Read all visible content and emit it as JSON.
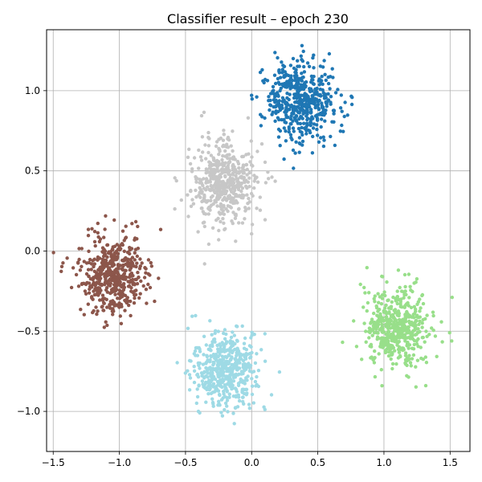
{
  "chart_data": {
    "type": "scatter",
    "title": "Classifier result – epoch 230",
    "xlabel": "",
    "ylabel": "",
    "xlim": [
      -1.55,
      1.65
    ],
    "ylim": [
      -1.25,
      1.38
    ],
    "xticks": [
      -1.5,
      -1.0,
      -0.5,
      0.0,
      0.5,
      1.0,
      1.5
    ],
    "xtick_labels": [
      "−1.5",
      "−1.0",
      "−0.5",
      "0.0",
      "0.5",
      "1.0",
      "1.5"
    ],
    "yticks": [
      -1.0,
      -0.5,
      0.0,
      0.5,
      1.0
    ],
    "ytick_labels": [
      "−1.0",
      "−0.5",
      "0.0",
      "0.5",
      "1.0"
    ],
    "grid": true,
    "legend": "none",
    "clusters": [
      {
        "color": "#1f77b4",
        "center": [
          0.37,
          0.93
        ],
        "spread": [
          0.13,
          0.13
        ],
        "count": 500
      },
      {
        "color": "#c7c7c7",
        "center": [
          -0.22,
          0.43
        ],
        "spread": [
          0.12,
          0.13
        ],
        "count": 500
      },
      {
        "color": "#8c564b",
        "center": [
          -1.05,
          -0.14
        ],
        "spread": [
          0.13,
          0.13
        ],
        "count": 500
      },
      {
        "color": "#98df8a",
        "center": [
          1.1,
          -0.48
        ],
        "spread": [
          0.13,
          0.13
        ],
        "count": 500
      },
      {
        "color": "#9edae5",
        "center": [
          -0.2,
          -0.74
        ],
        "spread": [
          0.12,
          0.12
        ],
        "count": 500
      }
    ]
  }
}
